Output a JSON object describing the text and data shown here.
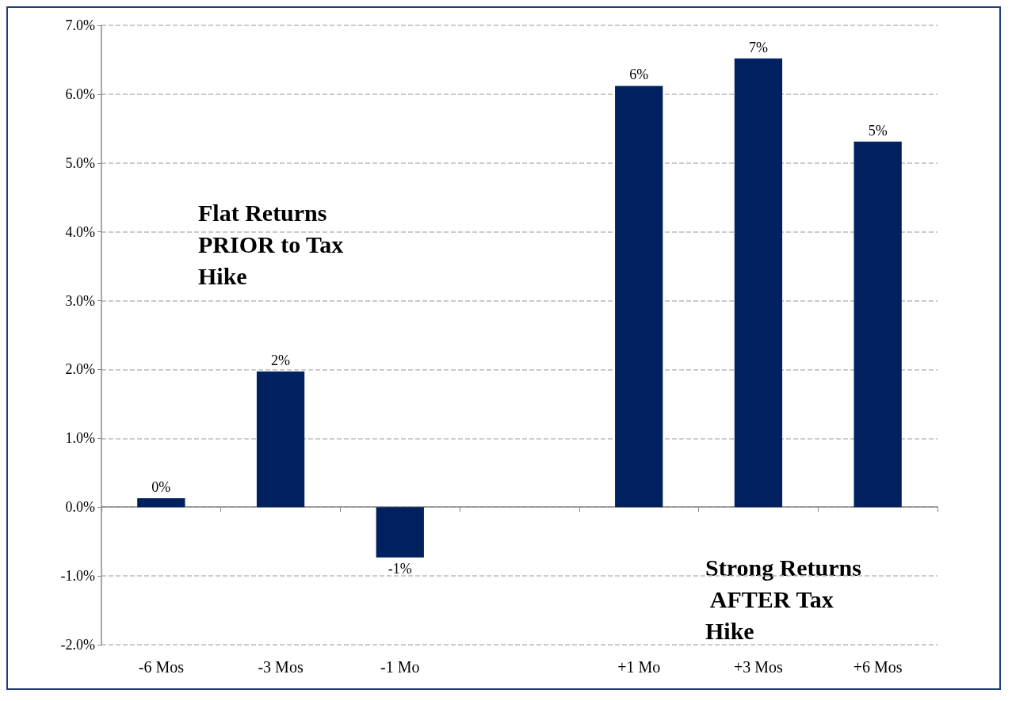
{
  "chart_data": {
    "type": "bar",
    "categories": [
      "-6 Mos",
      "-3 Mos",
      "-1 Mo",
      null,
      "+1 Mo",
      "+3 Mos",
      "+6 Mos"
    ],
    "values": [
      0.13,
      1.97,
      -0.73,
      null,
      6.12,
      6.52,
      5.31
    ],
    "value_labels": [
      "0%",
      "2%",
      "-1%",
      null,
      "6%",
      "7%",
      "5%"
    ],
    "color": "#002060",
    "ylim": [
      -2,
      7
    ],
    "yticks": [
      {
        "value": -2,
        "label": "-2.0%"
      },
      {
        "value": -1,
        "label": "-1.0%"
      },
      {
        "value": 0,
        "label": "0.0%"
      },
      {
        "value": 1,
        "label": "1.0%"
      },
      {
        "value": 2,
        "label": "2.0%"
      },
      {
        "value": 3,
        "label": "3.0%"
      },
      {
        "value": 4,
        "label": "4.0%"
      },
      {
        "value": 5,
        "label": "5.0%"
      },
      {
        "value": 6,
        "label": "6.0%"
      },
      {
        "value": 7,
        "label": "7.0%"
      }
    ],
    "grid": "y",
    "annotations": [
      "Flat Returns PRIOR to Tax Hike",
      "Strong Returns AFTER Tax Hike"
    ]
  }
}
